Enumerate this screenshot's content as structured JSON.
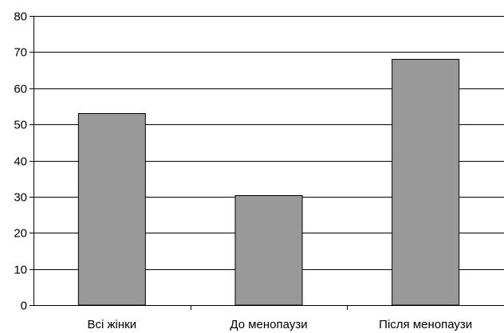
{
  "chart_data": {
    "type": "bar",
    "categories": [
      "Всі жінки",
      "До менопаузи",
      "Після менопаузи"
    ],
    "values": [
      53,
      30.3,
      68
    ],
    "ylim": [
      0,
      80
    ],
    "yticks": [
      0,
      10,
      20,
      30,
      40,
      50,
      60,
      70,
      80
    ],
    "yticks_labels": [
      "0",
      "10",
      "20",
      "30",
      "40",
      "50",
      "60",
      "70",
      "80"
    ],
    "grid": true,
    "legend": "none",
    "bar_color": "#999999",
    "bar_stroke": "#000000"
  }
}
